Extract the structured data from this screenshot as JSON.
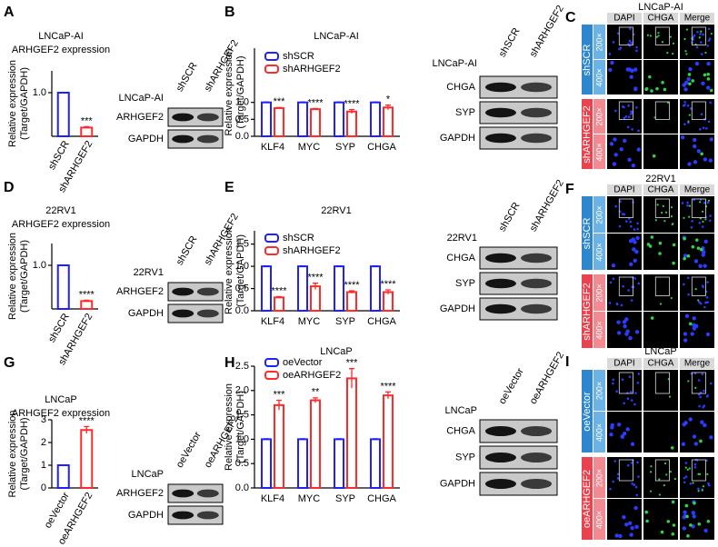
{
  "chart_data": [
    {
      "type": "bar",
      "panel": "A",
      "title": "LNCaP-AI",
      "subtitle": "ARHGEF2 expression",
      "ylabel": [
        "Relative expression",
        "(Target/GAPDH)"
      ],
      "categories": [
        "shSCR",
        "shARHGEF2"
      ],
      "values": [
        1.0,
        0.2
      ],
      "errors": [
        0.005,
        0.02
      ],
      "colors": [
        "#1f1fff",
        "#ff2a2a"
      ],
      "ylim": [
        0,
        1.5
      ],
      "yticks": [
        {
          "value": 1,
          "label": "1.0"
        }
      ],
      "annotations": [
        null,
        "***"
      ]
    },
    {
      "type": "bar",
      "panel": "B",
      "title": "LNCaP-AI",
      "ylabel": [
        "Relative expression",
        "(Target/GAPDH)"
      ],
      "categories": [
        "KLF4",
        "MYC",
        "SYP",
        "CHGA"
      ],
      "series": [
        {
          "name": "shSCR",
          "color": "#1f1fff",
          "values": [
            1.0,
            1.0,
            1.0,
            1.0
          ],
          "errors": [
            0.01,
            0.01,
            0.01,
            0.01
          ]
        },
        {
          "name": "shARHGEF2",
          "color": "#ff2a2a",
          "values": [
            0.83,
            0.8,
            0.73,
            0.85
          ],
          "errors": [
            0.02,
            0.02,
            0.06,
            0.07
          ]
        }
      ],
      "ylim": [
        0,
        2.6
      ],
      "yticks": [
        {
          "value": 0,
          "label": "0.0"
        },
        {
          "value": 0.5,
          "label": "0.5"
        },
        {
          "value": 1,
          "label": "1.0"
        }
      ],
      "annotations": [
        "***",
        "****",
        "****",
        "*"
      ]
    },
    {
      "type": "bar",
      "panel": "D",
      "title": "22RV1",
      "subtitle": "ARHGEF2 expression",
      "ylabel": [
        "Relative expression",
        "(Target/GAPDH)"
      ],
      "categories": [
        "shSCR",
        "shARHGEF2"
      ],
      "values": [
        1.0,
        0.18
      ],
      "errors": [
        0.005,
        0.02
      ],
      "colors": [
        "#1f1fff",
        "#ff2a2a"
      ],
      "ylim": [
        0,
        1.5
      ],
      "yticks": [
        {
          "value": 1,
          "label": "1.0"
        }
      ],
      "annotations": [
        null,
        "****"
      ]
    },
    {
      "type": "bar",
      "panel": "E",
      "title": "22RV1",
      "ylabel": [
        "Relative expression",
        "(Target/GAPDH)"
      ],
      "categories": [
        "KLF4",
        "MYC",
        "SYP",
        "CHGA"
      ],
      "series": [
        {
          "name": "shSCR",
          "color": "#1f1fff",
          "values": [
            1.0,
            1.0,
            1.0,
            1.0
          ],
          "errors": [
            0.01,
            0.01,
            0.01,
            0.01
          ]
        },
        {
          "name": "shARHGEF2",
          "color": "#ff2a2a",
          "values": [
            0.3,
            0.55,
            0.42,
            0.42
          ],
          "errors": [
            0.02,
            0.07,
            0.03,
            0.05
          ]
        }
      ],
      "ylim": [
        0,
        1.8
      ],
      "yticks": [
        {
          "value": 0,
          "label": "0.0"
        },
        {
          "value": 0.5,
          "label": "0.5"
        },
        {
          "value": 1,
          "label": "1.0"
        },
        {
          "value": 1.5,
          "label": "1.5"
        }
      ],
      "annotations": [
        "****",
        "****",
        "****",
        "****"
      ]
    },
    {
      "type": "bar",
      "panel": "G",
      "title": "LNCaP",
      "subtitle": "ARHGEF2 expression",
      "ylabel": [
        "Relative expression",
        "(Target/GAPDH)"
      ],
      "categories": [
        "oeVector",
        "oeARHGEF2"
      ],
      "values": [
        1.0,
        2.55
      ],
      "errors": [
        0.01,
        0.15
      ],
      "colors": [
        "#1f1fff",
        "#ff2a2a"
      ],
      "ylim": [
        0,
        3
      ],
      "yticks": [
        0,
        1,
        2,
        3
      ],
      "annotations": [
        null,
        "****"
      ]
    },
    {
      "type": "bar",
      "panel": "H",
      "title": "LNCaP",
      "ylabel": [
        "Relative expression",
        "(Target/GAPDH)"
      ],
      "categories": [
        "KLF4",
        "MYC",
        "SYP",
        "CHGA"
      ],
      "series": [
        {
          "name": "oeVector",
          "color": "#1f1fff",
          "values": [
            1.0,
            1.0,
            1.0,
            1.0
          ],
          "errors": [
            0.01,
            0.01,
            0.01,
            0.01
          ]
        },
        {
          "name": "oeARHGEF2",
          "color": "#ff2a2a",
          "values": [
            1.7,
            1.8,
            2.25,
            1.9
          ],
          "errors": [
            0.1,
            0.05,
            0.2,
            0.07
          ]
        }
      ],
      "ylim": [
        0,
        2.5
      ],
      "yticks": [
        {
          "value": 0,
          "label": "0.0"
        },
        {
          "value": 0.5,
          "label": "0.5"
        },
        {
          "value": 1,
          "label": "1.0"
        },
        {
          "value": 1.5,
          "label": "1.5"
        },
        {
          "value": 2,
          "label": "2.0"
        },
        {
          "value": 2.5,
          "label": "2.5"
        }
      ],
      "annotations": [
        "***",
        "**",
        "***",
        "****"
      ]
    }
  ],
  "blots": [
    {
      "cell": "LNCaP-AI",
      "lanes": [
        "shSCR",
        "shARHGEF2"
      ],
      "rows": [
        "ARHGEF2",
        "GAPDH"
      ]
    },
    {
      "cell": "LNCaP-AI",
      "lanes": [
        "shSCR",
        "shARHGEF2"
      ],
      "rows": [
        "CHGA",
        "SYP",
        "GAPDH"
      ]
    },
    {
      "cell": "22RV1",
      "lanes": [
        "shSCR",
        "shARHGEF2"
      ],
      "rows": [
        "ARHGEF2",
        "GAPDH"
      ]
    },
    {
      "cell": "22RV1",
      "lanes": [
        "shSCR",
        "shARHGEF2"
      ],
      "rows": [
        "CHGA",
        "SYP",
        "GAPDH"
      ]
    },
    {
      "cell": "LNCaP",
      "lanes": [
        "oeVector",
        "oeARHGEF2"
      ],
      "rows": [
        "ARHGEF2",
        "GAPDH"
      ]
    },
    {
      "cell": "LNCaP",
      "lanes": [
        "oeVector",
        "oeARHGEF2"
      ],
      "rows": [
        "CHGA",
        "SYP",
        "GAPDH"
      ]
    }
  ],
  "images": [
    {
      "panel": "C",
      "title": "LNCaP-AI",
      "columns": [
        "DAPI",
        "CHGA",
        "Merge"
      ],
      "groups": [
        {
          "name": "shSCR",
          "mags": [
            "200×",
            "400×"
          ]
        },
        {
          "name": "shARHGEF2",
          "mags": [
            "200×",
            "400×"
          ]
        }
      ]
    },
    {
      "panel": "F",
      "title": "22RV1",
      "columns": [
        "DAPI",
        "CHGA",
        "Merge"
      ],
      "groups": [
        {
          "name": "shSCR",
          "mags": [
            "200×",
            "400×"
          ]
        },
        {
          "name": "shARHGEF2",
          "mags": [
            "200×",
            "400×"
          ]
        }
      ]
    },
    {
      "panel": "I",
      "title": "LNCaP",
      "columns": [
        "DAPI",
        "CHGA",
        "Merge"
      ],
      "groups": [
        {
          "name": "oeVector",
          "mags": [
            "200×",
            "400×"
          ]
        },
        {
          "name": "oeARHGEF2",
          "mags": [
            "200×",
            "400×"
          ]
        }
      ]
    }
  ]
}
